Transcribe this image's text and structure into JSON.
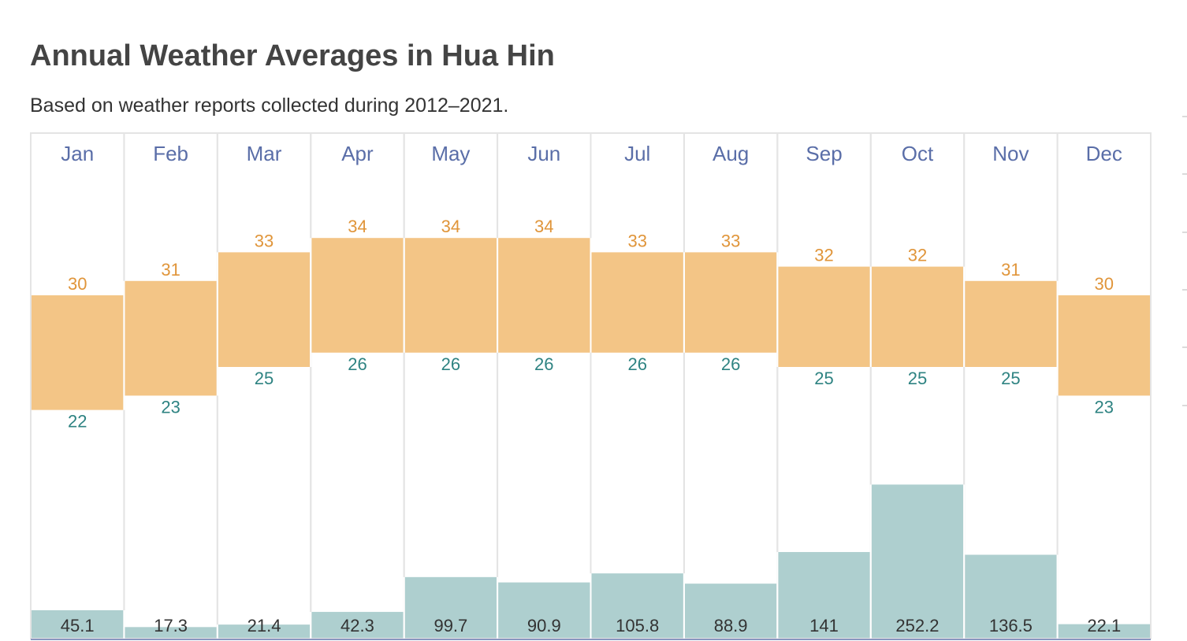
{
  "title": "Annual Weather Averages in Hua Hin",
  "subtitle": "Based on weather reports collected during 2012–2021.",
  "colors": {
    "month_label": "#5a6ea8",
    "high_temp": "#e0953a",
    "low_temp": "#2e8382",
    "temp_bar": "#f3c586",
    "rain_bar": "#aecfcf"
  },
  "chart_data": {
    "type": "bar",
    "categories": [
      "Jan",
      "Feb",
      "Mar",
      "Apr",
      "May",
      "Jun",
      "Jul",
      "Aug",
      "Sep",
      "Oct",
      "Nov",
      "Dec"
    ],
    "high_temp": [
      30,
      31,
      33,
      34,
      34,
      34,
      33,
      33,
      32,
      32,
      31,
      30
    ],
    "low_temp": [
      22,
      23,
      25,
      26,
      26,
      26,
      26,
      26,
      25,
      25,
      25,
      23
    ],
    "precipitation": [
      45.1,
      17.3,
      21.4,
      42.3,
      99.7,
      90.9,
      105.8,
      88.9,
      141,
      252.2,
      136.5,
      22.1
    ],
    "grid": false
  }
}
